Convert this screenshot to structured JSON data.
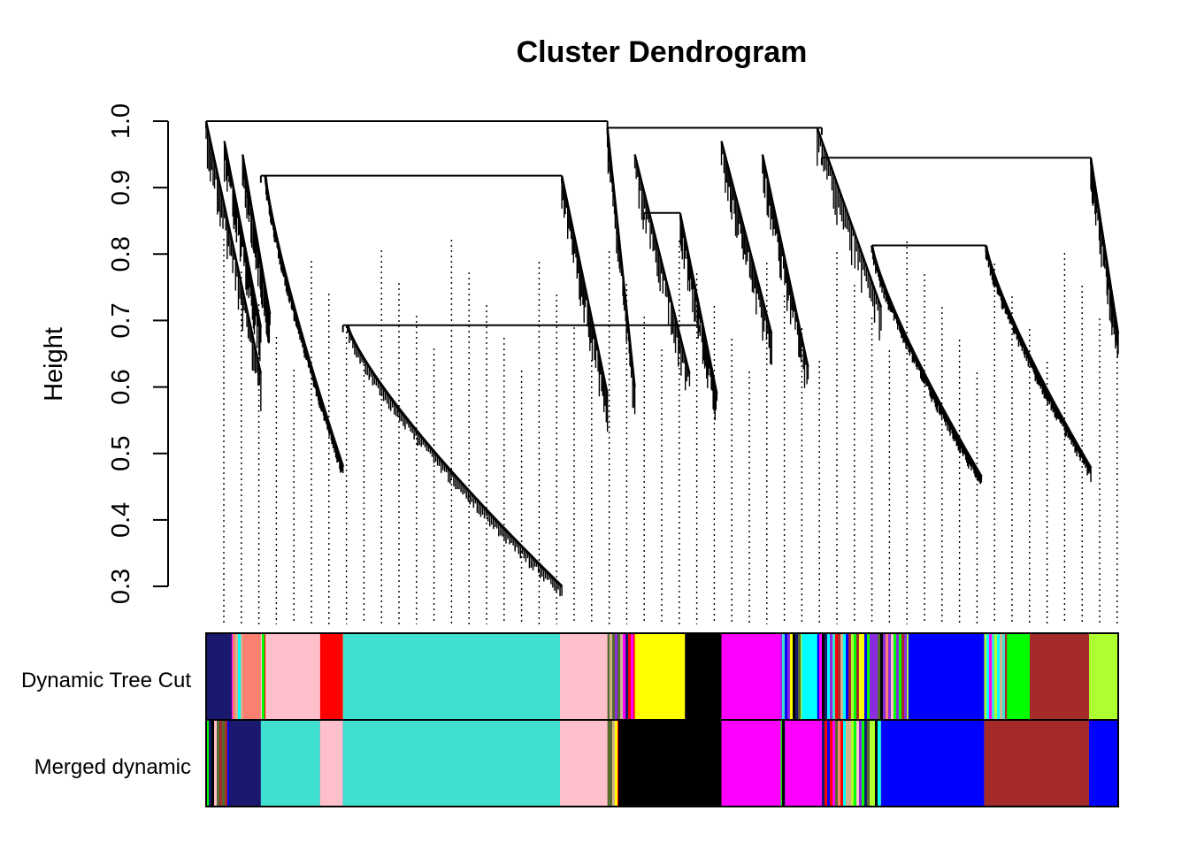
{
  "chart_data": {
    "type": "dendrogram",
    "title": "Cluster Dendrogram",
    "ylabel": "Height",
    "xlabel": "",
    "ylim": [
      0.3,
      1.0
    ],
    "yticks": [
      "0.3",
      "0.4",
      "0.5",
      "0.6",
      "0.7",
      "0.8",
      "0.9",
      "1.0"
    ],
    "grid": false,
    "legend": "none",
    "row_labels": [
      "Dynamic Tree Cut",
      "Merged dynamic"
    ],
    "key_merges": [
      {
        "x": [
          0.0,
          0.44
        ],
        "height": 1.0
      },
      {
        "x": [
          0.44,
          0.675
        ],
        "height": 0.99
      },
      {
        "x": [
          0.675,
          0.97
        ],
        "height": 0.945
      },
      {
        "x": [
          0.06,
          0.39
        ],
        "height": 0.918
      },
      {
        "x": [
          0.15,
          0.54
        ],
        "height": 0.693
      },
      {
        "x": [
          0.48,
          0.52
        ],
        "height": 0.862
      },
      {
        "x": [
          0.73,
          0.855
        ],
        "height": 0.813
      }
    ],
    "branch_tips": [
      {
        "x": [
          0.065,
          0.15
        ],
        "from": 0.918,
        "to": 0.48
      },
      {
        "x": [
          0.155,
          0.39
        ],
        "from": 0.693,
        "to": 0.3
      },
      {
        "x": [
          0.73,
          0.85
        ],
        "from": 0.813,
        "to": 0.465
      },
      {
        "x": [
          0.855,
          0.97
        ],
        "from": 0.813,
        "to": 0.478
      }
    ],
    "module_colors": {
      "dynamic": [
        {
          "color": "#191970",
          "from": 0.0,
          "to": 0.028
        },
        {
          "color": "#fa8072",
          "from": 0.04,
          "to": 0.06
        },
        {
          "color": "#ffc0cb",
          "from": 0.065,
          "to": 0.125
        },
        {
          "color": "#ff0000",
          "from": 0.125,
          "to": 0.15
        },
        {
          "color": "#40e0d0",
          "from": 0.15,
          "to": 0.388
        },
        {
          "color": "#ffc0cb",
          "from": 0.388,
          "to": 0.44
        },
        {
          "color": "#ffff00",
          "from": 0.47,
          "to": 0.525
        },
        {
          "color": "#000000",
          "from": 0.525,
          "to": 0.565
        },
        {
          "color": "#ff00ff",
          "from": 0.565,
          "to": 0.63
        },
        {
          "color": "#00ffff",
          "from": 0.653,
          "to": 0.67
        },
        {
          "color": "#0000ff",
          "from": 0.77,
          "to": 0.853
        },
        {
          "color": "#00ff00",
          "from": 0.878,
          "to": 0.903
        },
        {
          "color": "#a52a2a",
          "from": 0.903,
          "to": 0.968
        },
        {
          "color": "#adff2f",
          "from": 0.968,
          "to": 1.0
        }
      ],
      "merged": [
        {
          "color": "#191970",
          "from": 0.025,
          "to": 0.06
        },
        {
          "color": "#40e0d0",
          "from": 0.06,
          "to": 0.125
        },
        {
          "color": "#ffc0cb",
          "from": 0.125,
          "to": 0.15
        },
        {
          "color": "#40e0d0",
          "from": 0.15,
          "to": 0.388
        },
        {
          "color": "#ffc0cb",
          "from": 0.388,
          "to": 0.44
        },
        {
          "color": "#000000",
          "from": 0.452,
          "to": 0.565
        },
        {
          "color": "#ff00ff",
          "from": 0.565,
          "to": 0.63
        },
        {
          "color": "#ff00ff",
          "from": 0.635,
          "to": 0.675
        },
        {
          "color": "#0000ff",
          "from": 0.74,
          "to": 0.853
        },
        {
          "color": "#a52a2a",
          "from": 0.853,
          "to": 0.968
        },
        {
          "color": "#0000ff",
          "from": 0.968,
          "to": 1.0
        }
      ]
    }
  }
}
